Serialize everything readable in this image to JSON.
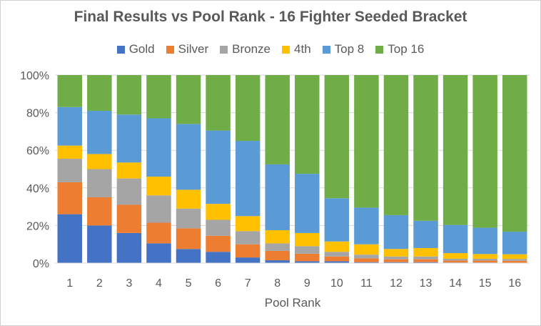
{
  "chart_data": {
    "type": "bar",
    "stacked": true,
    "normalized": true,
    "title": "Final Results vs Pool Rank - 16 Fighter Seeded Bracket",
    "xlabel": "Pool Rank",
    "ylabel": "",
    "ylim": [
      0,
      100
    ],
    "yticks": [
      "0%",
      "20%",
      "40%",
      "60%",
      "80%",
      "100%"
    ],
    "legend_position": "top",
    "categories": [
      "1",
      "2",
      "3",
      "4",
      "5",
      "6",
      "7",
      "8",
      "9",
      "10",
      "11",
      "12",
      "13",
      "14",
      "15",
      "16"
    ],
    "series": [
      {
        "name": "Gold",
        "color": "#4472c4",
        "values": [
          26,
          20,
          16,
          10.5,
          7.5,
          6,
          3,
          1.5,
          1,
          1,
          0.5,
          0.5,
          0.5,
          0.3,
          0.3,
          0.2
        ]
      },
      {
        "name": "Silver",
        "color": "#ed7d31",
        "values": [
          17,
          15,
          15,
          11,
          11,
          8.5,
          7,
          5,
          4,
          2.5,
          2,
          1.5,
          1.5,
          1,
          1,
          1
        ]
      },
      {
        "name": "Bronze",
        "color": "#a5a5a5",
        "values": [
          12.5,
          15,
          14,
          14.5,
          10.5,
          8.5,
          7,
          4,
          4,
          2.5,
          2,
          1.5,
          1.5,
          1,
          1,
          1
        ]
      },
      {
        "name": "4th",
        "color": "#ffc000",
        "values": [
          7,
          8,
          8.5,
          10,
          10,
          8.5,
          8,
          7,
          7,
          5.5,
          5.5,
          4,
          4.5,
          3,
          2.5,
          2.5
        ]
      },
      {
        "name": "Top 8",
        "color": "#5b9bd5",
        "values": [
          20.5,
          23,
          25.5,
          31,
          35,
          39,
          40,
          35,
          31.5,
          23,
          19.5,
          18,
          14.5,
          15,
          14,
          12
        ]
      },
      {
        "name": "Top 16",
        "color": "#70ad47",
        "values": [
          17,
          19,
          21,
          23,
          26,
          29.5,
          35,
          47.5,
          52.5,
          65.5,
          70.5,
          74.5,
          77.5,
          79.7,
          81.2,
          83.3
        ]
      }
    ]
  }
}
